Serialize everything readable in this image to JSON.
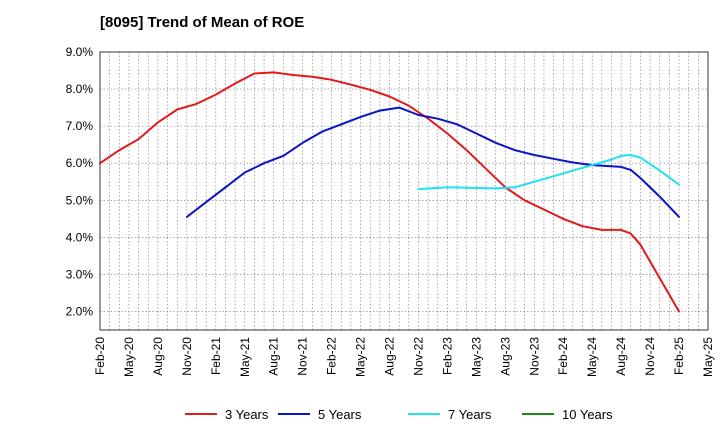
{
  "chart_data": {
    "type": "line",
    "title": "[8095]  Trend of Mean of ROE",
    "xlabel": "",
    "ylabel": "",
    "ylim": [
      1.5,
      9.0
    ],
    "y_ticks": [
      "9.0%",
      "8.0%",
      "7.0%",
      "6.0%",
      "5.0%",
      "4.0%",
      "3.0%",
      "2.0%"
    ],
    "y_tick_values": [
      9.0,
      8.0,
      7.0,
      6.0,
      5.0,
      4.0,
      3.0,
      2.0
    ],
    "x_ticks": [
      "Feb-20",
      "May-20",
      "Aug-20",
      "Nov-20",
      "Feb-21",
      "May-21",
      "Aug-21",
      "Nov-21",
      "Feb-22",
      "May-22",
      "Aug-22",
      "Nov-22",
      "Feb-23",
      "May-23",
      "Aug-23",
      "Nov-23",
      "Feb-24",
      "May-24",
      "Aug-24",
      "Nov-24",
      "Feb-25",
      "May-25"
    ],
    "grid": true,
    "legend_position": "bottom",
    "series": [
      {
        "name": "3 Years",
        "color": "#e31a1c",
        "points": [
          [
            "Feb-20",
            6.0
          ],
          [
            "Apr-20",
            6.35
          ],
          [
            "Jun-20",
            6.65
          ],
          [
            "Aug-20",
            7.1
          ],
          [
            "Oct-20",
            7.45
          ],
          [
            "Dec-20",
            7.6
          ],
          [
            "Feb-21",
            7.85
          ],
          [
            "Apr-21",
            8.15
          ],
          [
            "Jun-21",
            8.42
          ],
          [
            "Aug-21",
            8.45
          ],
          [
            "Oct-21",
            8.38
          ],
          [
            "Dec-21",
            8.33
          ],
          [
            "Feb-22",
            8.25
          ],
          [
            "Apr-22",
            8.12
          ],
          [
            "Jun-22",
            7.98
          ],
          [
            "Aug-22",
            7.8
          ],
          [
            "Oct-22",
            7.55
          ],
          [
            "Dec-22",
            7.2
          ],
          [
            "Feb-23",
            6.8
          ],
          [
            "Apr-23",
            6.35
          ],
          [
            "Jun-23",
            5.85
          ],
          [
            "Aug-23",
            5.35
          ],
          [
            "Oct-23",
            5.0
          ],
          [
            "Dec-23",
            4.75
          ],
          [
            "Feb-24",
            4.5
          ],
          [
            "Apr-24",
            4.3
          ],
          [
            "Jun-24",
            4.2
          ],
          [
            "Aug-24",
            4.2
          ],
          [
            "Sep-24",
            4.1
          ],
          [
            "Oct-24",
            3.8
          ],
          [
            "Dec-24",
            2.9
          ],
          [
            "Feb-25",
            2.0
          ]
        ]
      },
      {
        "name": "5 Years",
        "color": "#0a14c8",
        "points": [
          [
            "Nov-20",
            4.55
          ],
          [
            "Jan-21",
            4.95
          ],
          [
            "Mar-21",
            5.35
          ],
          [
            "May-21",
            5.75
          ],
          [
            "Jul-21",
            6.0
          ],
          [
            "Sep-21",
            6.2
          ],
          [
            "Nov-21",
            6.55
          ],
          [
            "Jan-22",
            6.85
          ],
          [
            "Mar-22",
            7.05
          ],
          [
            "May-22",
            7.25
          ],
          [
            "Jul-22",
            7.42
          ],
          [
            "Sep-22",
            7.5
          ],
          [
            "Nov-22",
            7.3
          ],
          [
            "Jan-23",
            7.2
          ],
          [
            "Mar-23",
            7.05
          ],
          [
            "May-23",
            6.8
          ],
          [
            "Jul-23",
            6.55
          ],
          [
            "Sep-23",
            6.35
          ],
          [
            "Nov-23",
            6.22
          ],
          [
            "Jan-24",
            6.12
          ],
          [
            "Mar-24",
            6.02
          ],
          [
            "May-24",
            5.95
          ],
          [
            "Jul-24",
            5.92
          ],
          [
            "Aug-24",
            5.9
          ],
          [
            "Sep-24",
            5.82
          ],
          [
            "Oct-24",
            5.6
          ],
          [
            "Dec-24",
            5.1
          ],
          [
            "Feb-25",
            4.55
          ]
        ]
      },
      {
        "name": "7 Years",
        "color": "#22e0f0",
        "points": [
          [
            "Nov-22",
            5.3
          ],
          [
            "Feb-23",
            5.35
          ],
          [
            "May-23",
            5.33
          ],
          [
            "Jul-23",
            5.32
          ],
          [
            "Sep-23",
            5.35
          ],
          [
            "Nov-23",
            5.5
          ],
          [
            "Jan-24",
            5.65
          ],
          [
            "Mar-24",
            5.8
          ],
          [
            "May-24",
            5.95
          ],
          [
            "Jul-24",
            6.1
          ],
          [
            "Aug-24",
            6.2
          ],
          [
            "Sep-24",
            6.22
          ],
          [
            "Oct-24",
            6.15
          ],
          [
            "Dec-24",
            5.8
          ],
          [
            "Feb-25",
            5.42
          ]
        ]
      },
      {
        "name": "10 Years",
        "color": "#1a8a1a",
        "points": []
      }
    ]
  }
}
